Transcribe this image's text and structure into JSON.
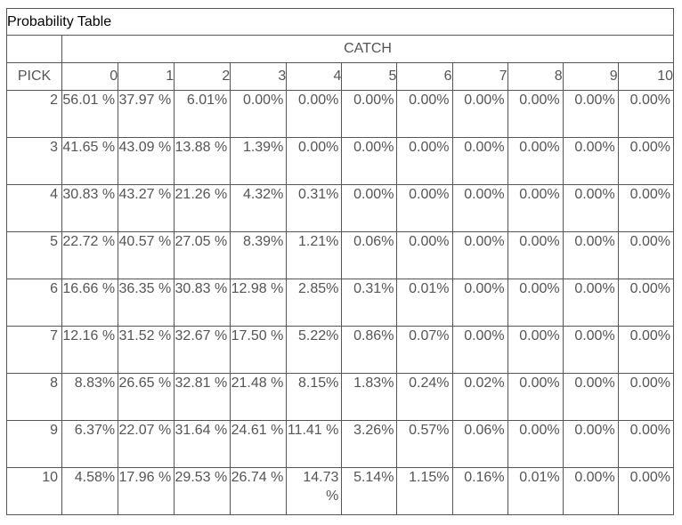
{
  "title": "Probability Table",
  "catch_label": "CATCH",
  "pick_label": "PICK",
  "catch_values": [
    "0",
    "1",
    "2",
    "3",
    "4",
    "5",
    "6",
    "7",
    "8",
    "9",
    "10"
  ],
  "rows": [
    {
      "pick": "2",
      "cells": [
        "56.01 %",
        "37.97 %",
        "6.01%",
        "0.00%",
        "0.00%",
        "0.00%",
        "0.00%",
        "0.00%",
        "0.00%",
        "0.00%",
        "0.00%"
      ]
    },
    {
      "pick": "3",
      "cells": [
        "41.65 %",
        "43.09 %",
        "13.88 %",
        "1.39%",
        "0.00%",
        "0.00%",
        "0.00%",
        "0.00%",
        "0.00%",
        "0.00%",
        "0.00%"
      ]
    },
    {
      "pick": "4",
      "cells": [
        "30.83 %",
        "43.27 %",
        "21.26 %",
        "4.32%",
        "0.31%",
        "0.00%",
        "0.00%",
        "0.00%",
        "0.00%",
        "0.00%",
        "0.00%"
      ]
    },
    {
      "pick": "5",
      "cells": [
        "22.72 %",
        "40.57 %",
        "27.05 %",
        "8.39%",
        "1.21%",
        "0.06%",
        "0.00%",
        "0.00%",
        "0.00%",
        "0.00%",
        "0.00%"
      ]
    },
    {
      "pick": "6",
      "cells": [
        "16.66 %",
        "36.35 %",
        "30.83 %",
        "12.98 %",
        "2.85%",
        "0.31%",
        "0.01%",
        "0.00%",
        "0.00%",
        "0.00%",
        "0.00%"
      ]
    },
    {
      "pick": "7",
      "cells": [
        "12.16 %",
        "31.52 %",
        "32.67 %",
        "17.50 %",
        "5.22%",
        "0.86%",
        "0.07%",
        "0.00%",
        "0.00%",
        "0.00%",
        "0.00%"
      ]
    },
    {
      "pick": "8",
      "cells": [
        "8.83%",
        "26.65 %",
        "32.81 %",
        "21.48 %",
        "8.15%",
        "1.83%",
        "0.24%",
        "0.02%",
        "0.00%",
        "0.00%",
        "0.00%"
      ]
    },
    {
      "pick": "9",
      "cells": [
        "6.37%",
        "22.07 %",
        "31.64 %",
        "24.61 %",
        "11.41 %",
        "3.26%",
        "0.57%",
        "0.06%",
        "0.00%",
        "0.00%",
        "0.00%"
      ]
    },
    {
      "pick": "10",
      "cells": [
        "4.58%",
        "17.96 %",
        "29.53 %",
        "26.74 %",
        "14.73 %",
        "5.14%",
        "1.15%",
        "0.16%",
        "0.01%",
        "0.00%",
        "0.00%"
      ]
    }
  ]
}
